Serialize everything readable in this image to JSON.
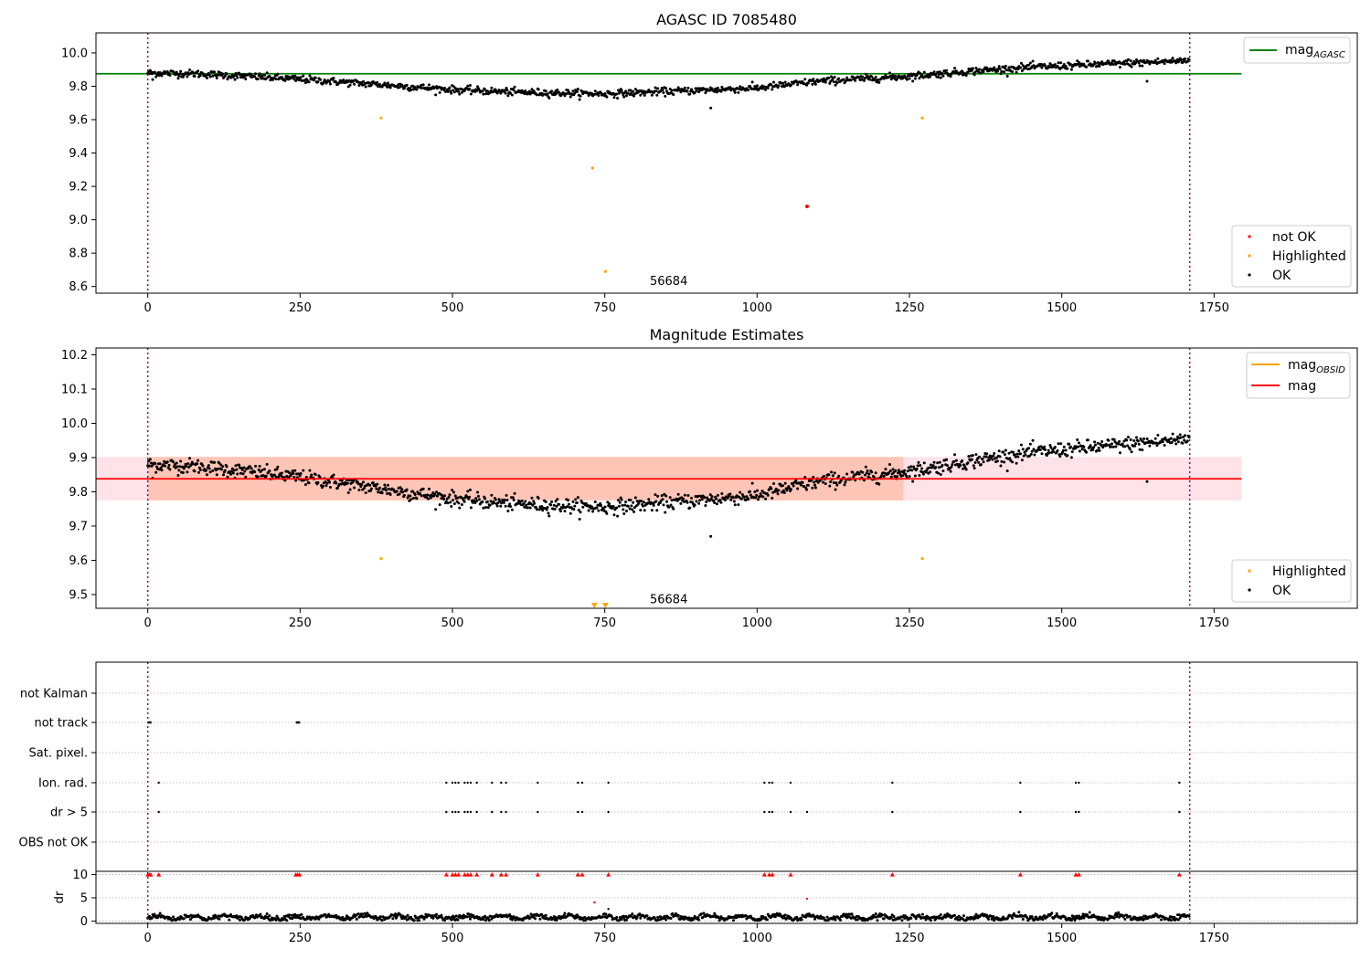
{
  "chart_data": [
    {
      "type": "scatter",
      "title": "AGASC ID 7085480",
      "xlim": [
        -85,
        1985
      ],
      "ylim": [
        8.56,
        10.12
      ],
      "xticks": [
        0,
        250,
        500,
        750,
        1000,
        1250,
        1500,
        1750
      ],
      "yticks": [
        8.6,
        8.8,
        9.0,
        9.2,
        9.4,
        9.6,
        9.8,
        10.0
      ],
      "vlines": [
        0,
        1710
      ],
      "annotation": {
        "text": "56684",
        "x": 855,
        "y": 8.63
      },
      "hlines": [
        {
          "name": "mag_AGASC",
          "y": 9.875,
          "x_range": [
            -85,
            1795
          ],
          "color": "#008000"
        }
      ],
      "ok_trend": [
        [
          0,
          9.88
        ],
        [
          80,
          9.875
        ],
        [
          160,
          9.86
        ],
        [
          260,
          9.84
        ],
        [
          380,
          9.81
        ],
        [
          500,
          9.78
        ],
        [
          600,
          9.765
        ],
        [
          750,
          9.755
        ],
        [
          900,
          9.775
        ],
        [
          1000,
          9.79
        ],
        [
          1100,
          9.83
        ],
        [
          1250,
          9.86
        ],
        [
          1350,
          9.89
        ],
        [
          1450,
          9.915
        ],
        [
          1550,
          9.93
        ],
        [
          1650,
          9.945
        ],
        [
          1710,
          9.955
        ]
      ],
      "ok_outliers": [
        [
          924,
          9.67
        ],
        [
          1640,
          9.83
        ],
        [
          8,
          9.84
        ]
      ],
      "highlighted": [
        [
          383,
          9.61
        ],
        [
          730,
          9.31
        ],
        [
          751,
          8.69
        ],
        [
          1271,
          9.61
        ]
      ],
      "not_ok": [
        [
          1082,
          9.08
        ]
      ],
      "legend_lines": [
        "mag"
      ],
      "legend_lines_sub": [
        "AGASC"
      ],
      "legend_points": [
        "not OK",
        "Highlighted",
        "OK"
      ],
      "colors": {
        "ok": "#000000",
        "highlighted": "#ffa500",
        "not_ok": "#ff0000",
        "mag_agasc": "#008000"
      }
    },
    {
      "type": "scatter",
      "title": "Magnitude Estimates",
      "xlim": [
        -85,
        1985
      ],
      "ylim": [
        9.46,
        10.22
      ],
      "xticks": [
        0,
        250,
        500,
        750,
        1000,
        1250,
        1500,
        1750
      ],
      "yticks": [
        9.5,
        9.6,
        9.7,
        9.8,
        9.9,
        10.0,
        10.1,
        10.2
      ],
      "vlines": [
        0,
        1710
      ],
      "annotation": {
        "text": "56684",
        "x": 855,
        "y": 9.485
      },
      "mag": {
        "y": 9.838,
        "band": [
          9.775,
          9.902
        ],
        "x_range": [
          -85,
          1795
        ]
      },
      "mag_obsid_band": {
        "x_range": [
          0,
          1240
        ],
        "band": [
          9.775,
          9.902
        ]
      },
      "highlighted": [
        [
          383,
          9.605
        ],
        [
          1271,
          9.605
        ]
      ],
      "highlighted_triangles": [
        [
          733,
          9.468
        ],
        [
          751,
          9.468
        ]
      ],
      "legend_lines": [
        "mag",
        "mag"
      ],
      "legend_lines_sub": [
        "OBSID",
        ""
      ],
      "legend_points": [
        "Highlighted",
        "OK"
      ],
      "colors": {
        "ok": "#000000",
        "highlighted": "#ffa500",
        "mag": "#ff0000",
        "mag_obsid": "#ffa500",
        "band_mag": "#ffc0cb",
        "band_obsid": "#ffa07a"
      }
    },
    {
      "type": "scatter",
      "xlim": [
        -85,
        1985
      ],
      "xticks": [
        0,
        250,
        500,
        750,
        1000,
        1250,
        1500,
        1750
      ],
      "vlines": [
        0,
        1710
      ],
      "flag_rows": [
        "not Kalman",
        "not track",
        "Sat. pixel.",
        "Ion. rad.",
        "dr > 5",
        "OBS not OK"
      ],
      "flags": {
        "not track": [
          [
            0,
            6
          ]
        ],
        "Ion. rad.": [
          18,
          490,
          500,
          505,
          510,
          520,
          525,
          530,
          540,
          565,
          580,
          588,
          640,
          706,
          713,
          756,
          1012,
          1020,
          1025,
          1055,
          1222,
          1432,
          1523,
          1528,
          1693
        ],
        "dr > 5": [
          18,
          490,
          500,
          505,
          510,
          520,
          525,
          530,
          540,
          565,
          580,
          588,
          640,
          706,
          713,
          756,
          1012,
          1020,
          1025,
          1055,
          1082,
          1222,
          1432,
          1523,
          1528,
          1693
        ]
      },
      "not_track_segments": [
        [
          0,
          6
        ],
        [
          243,
          250
        ]
      ],
      "dr_ylabel": "dr",
      "dr_ylim": [
        -0.5,
        10.7
      ],
      "dr_yticks": [
        0,
        5,
        10
      ],
      "dr_top_markers": [
        0,
        3,
        5,
        18,
        243,
        246,
        249,
        490,
        500,
        505,
        510,
        520,
        525,
        530,
        540,
        565,
        580,
        588,
        640,
        706,
        713,
        756,
        1012,
        1020,
        1025,
        1055,
        1222,
        1432,
        1523,
        1528,
        1693
      ],
      "dr_outliers": [
        [
          733,
          4.0
        ],
        [
          756,
          2.6
        ],
        [
          1082,
          4.8
        ]
      ],
      "colors": {
        "dr": "#000000",
        "dr_clip": "#ff0000"
      }
    }
  ]
}
